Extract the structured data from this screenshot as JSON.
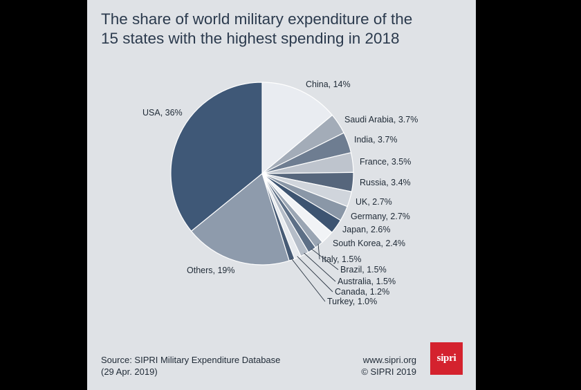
{
  "title_lines": [
    "The share of world military expenditure of the",
    "15 states with the highest spending in 2018"
  ],
  "source_lines": [
    "Source: SIPRI Military Expenditure Database",
    "(29 Apr. 2019)"
  ],
  "site_lines": [
    "www.sipri.org",
    "© SIPRI 2019"
  ],
  "logo_text": "sipri",
  "colors": {
    "background": "#dfe2e6",
    "title": "#2b3a4d",
    "logo": "#d4222e"
  },
  "chart_data": {
    "type": "pie",
    "unit": "%",
    "start": "12 o'clock, clockwise",
    "slices": [
      {
        "label": "China, 14%",
        "name": "China",
        "value": 14,
        "color": "#e9ecf1"
      },
      {
        "label": "Saudi Arabia, 3.7%",
        "name": "Saudi Arabia",
        "value": 3.7,
        "color": "#a3acb8"
      },
      {
        "label": "India, 3.7%",
        "name": "India",
        "value": 3.7,
        "color": "#6e7d91"
      },
      {
        "label": "France, 3.5%",
        "name": "France",
        "value": 3.5,
        "color": "#bec4cd"
      },
      {
        "label": "Russia, 3.4%",
        "name": "Russia",
        "value": 3.4,
        "color": "#56667c"
      },
      {
        "label": "UK, 2.7%",
        "name": "UK",
        "value": 2.7,
        "color": "#d0d5dc"
      },
      {
        "label": "Germany, 2.7%",
        "name": "Germany",
        "value": 2.7,
        "color": "#8a97a7"
      },
      {
        "label": "Japan, 2.6%",
        "name": "Japan",
        "value": 2.6,
        "color": "#3d5471"
      },
      {
        "label": "South Korea, 2.4%",
        "name": "South Korea",
        "value": 2.4,
        "color": "#f1f3f6"
      },
      {
        "label": "Italy, 1.5%",
        "name": "Italy",
        "value": 1.5,
        "color": "#9aa5b3"
      },
      {
        "label": "Brazil, 1.5%",
        "name": "Brazil",
        "value": 1.5,
        "color": "#5d6f86"
      },
      {
        "label": "Australia, 1.5%",
        "name": "Australia",
        "value": 1.5,
        "color": "#b5bdc8"
      },
      {
        "label": "Canada, 1.2%",
        "name": "Canada",
        "value": 1.2,
        "color": "#e7eaee"
      },
      {
        "label": "Turkey, 1.0%",
        "name": "Turkey",
        "value": 1.0,
        "color": "#475b75"
      },
      {
        "label": "Others, 19%",
        "name": "Others",
        "value": 19,
        "color": "#8e9bac"
      },
      {
        "label": "USA, 36%",
        "name": "USA",
        "value": 36,
        "color": "#3f5877"
      }
    ]
  }
}
